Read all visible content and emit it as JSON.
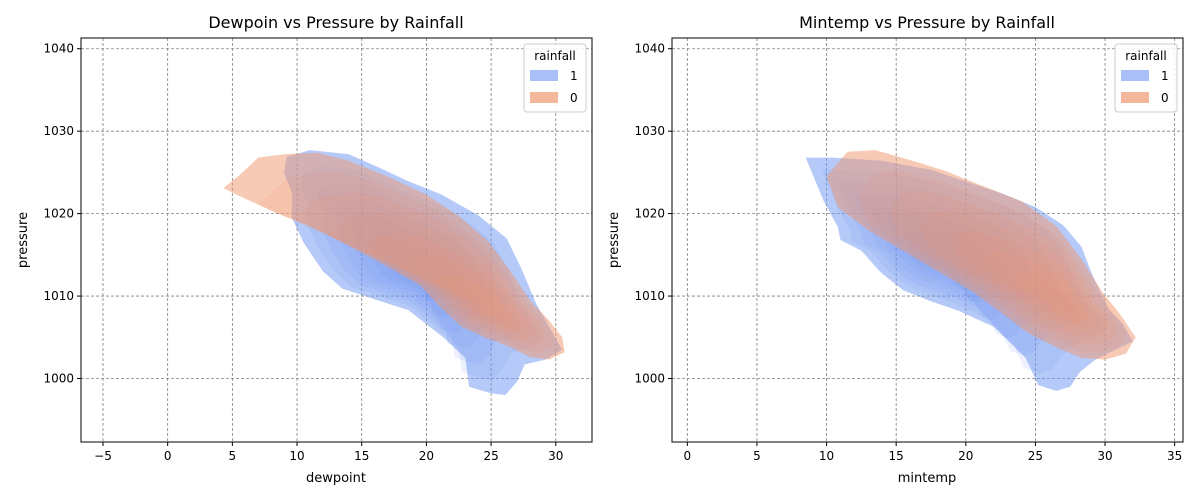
{
  "chart_data": [
    {
      "type": "kde_contour",
      "title": "Dewpoin vs Pressure by Rainfall",
      "xlabel": "dewpoint",
      "ylabel": "pressure",
      "xlim": [
        -6.7,
        32.8
      ],
      "ylim": [
        992.3,
        1041.3
      ],
      "xticks": [
        -5,
        0,
        5,
        10,
        15,
        20,
        25,
        30
      ],
      "yticks": [
        1000,
        1010,
        1020,
        1030,
        1040
      ],
      "grid": true,
      "legend": {
        "title": "rainfall",
        "placement": "top-right",
        "entries": [
          "1",
          "0"
        ]
      },
      "series": [
        {
          "name": "1",
          "color": "#6c96f2",
          "outline": [
            [
              9,
              1025
            ],
            [
              9.2,
              1026.9
            ],
            [
              11,
              1027.7
            ],
            [
              14,
              1027.2
            ],
            [
              16.3,
              1025.6
            ],
            [
              18.5,
              1024
            ],
            [
              21.2,
              1022.3
            ],
            [
              24,
              1019.8
            ],
            [
              26.2,
              1017
            ],
            [
              27.3,
              1013.5
            ],
            [
              28.5,
              1009
            ],
            [
              29.6,
              1006
            ],
            [
              30.5,
              1003.5
            ],
            [
              29.2,
              1002.3
            ],
            [
              27.6,
              1001.7
            ],
            [
              27,
              999.6
            ],
            [
              26.1,
              998
            ],
            [
              25,
              998.2
            ],
            [
              23.3,
              999
            ],
            [
              23,
              1002.5
            ],
            [
              21.3,
              1005
            ],
            [
              18.6,
              1008.3
            ],
            [
              16.4,
              1009.4
            ],
            [
              13.5,
              1010.9
            ],
            [
              12,
              1013
            ],
            [
              10.5,
              1016.5
            ],
            [
              9.6,
              1019.5
            ],
            [
              9.6,
              1022.5
            ]
          ],
          "center": [
            19,
            1012.5
          ]
        },
        {
          "name": "0",
          "color": "#f0956e",
          "outline": [
            [
              4.3,
              1023.1
            ],
            [
              5.5,
              1024.6
            ],
            [
              7,
              1026.8
            ],
            [
              9,
              1027.2
            ],
            [
              11.5,
              1027.4
            ],
            [
              14,
              1026.4
            ],
            [
              17,
              1024.5
            ],
            [
              20,
              1022.3
            ],
            [
              22.5,
              1019.7
            ],
            [
              24.8,
              1016.6
            ],
            [
              26.5,
              1013
            ],
            [
              28,
              1009.5
            ],
            [
              29.5,
              1007
            ],
            [
              30.5,
              1005
            ],
            [
              30.7,
              1003.2
            ],
            [
              29.5,
              1002.3
            ],
            [
              28,
              1002.6
            ],
            [
              26.5,
              1003.8
            ],
            [
              24.5,
              1005
            ],
            [
              22.7,
              1006.3
            ],
            [
              21,
              1008.8
            ],
            [
              19.5,
              1011.3
            ],
            [
              16.5,
              1014
            ],
            [
              13.5,
              1016.5
            ],
            [
              11,
              1018.5
            ],
            [
              8.5,
              1020
            ],
            [
              6,
              1021.8
            ]
          ],
          "center": [
            25,
            1008.5
          ]
        }
      ]
    },
    {
      "type": "kde_contour",
      "title": "Mintemp vs Pressure by Rainfall",
      "xlabel": "mintemp",
      "ylabel": "pressure",
      "xlim": [
        -1.1,
        35.6
      ],
      "ylim": [
        992.3,
        1041.3
      ],
      "xticks": [
        0,
        5,
        10,
        15,
        20,
        25,
        30,
        35
      ],
      "yticks": [
        1000,
        1010,
        1020,
        1030,
        1040
      ],
      "grid": true,
      "legend": {
        "title": "rainfall",
        "placement": "top-right",
        "entries": [
          "1",
          "0"
        ]
      },
      "series": [
        {
          "name": "1",
          "color": "#6c96f2",
          "outline": [
            [
              8.5,
              1026.8
            ],
            [
              10.5,
              1026.8
            ],
            [
              14,
              1026.4
            ],
            [
              17.5,
              1025.3
            ],
            [
              20,
              1023.9
            ],
            [
              22.5,
              1022.5
            ],
            [
              25,
              1020.8
            ],
            [
              27,
              1018.6
            ],
            [
              28.3,
              1016
            ],
            [
              29.1,
              1012.5
            ],
            [
              30.3,
              1008.3
            ],
            [
              31.2,
              1006.8
            ],
            [
              32,
              1004.5
            ],
            [
              30.5,
              1003.3
            ],
            [
              29.3,
              1002.3
            ],
            [
              28.2,
              1000.8
            ],
            [
              27.5,
              999
            ],
            [
              26.5,
              998.5
            ],
            [
              25.2,
              999.2
            ],
            [
              24.3,
              1002.5
            ],
            [
              22,
              1006.3
            ],
            [
              19.5,
              1008.2
            ],
            [
              17.3,
              1009.5
            ],
            [
              15.5,
              1010.7
            ],
            [
              13.8,
              1013
            ],
            [
              12.5,
              1015.5
            ],
            [
              11,
              1016.8
            ],
            [
              10.8,
              1018.4
            ],
            [
              9.8,
              1021.5
            ]
          ],
          "center": [
            17.5,
            1015
          ]
        },
        {
          "name": "0",
          "color": "#f0956e",
          "outline": [
            [
              10,
              1024.5
            ],
            [
              11.5,
              1027.5
            ],
            [
              13.5,
              1027.7
            ],
            [
              16,
              1026.5
            ],
            [
              18.5,
              1025.2
            ],
            [
              21,
              1023.5
            ],
            [
              24,
              1021.5
            ],
            [
              26.5,
              1018.5
            ],
            [
              28.3,
              1014.5
            ],
            [
              29.8,
              1010.5
            ],
            [
              31,
              1008
            ],
            [
              32.2,
              1005
            ],
            [
              31.5,
              1003
            ],
            [
              30,
              1002.3
            ],
            [
              28.3,
              1002.5
            ],
            [
              26.5,
              1003.8
            ],
            [
              24.5,
              1005.5
            ],
            [
              22.7,
              1007.8
            ],
            [
              20.5,
              1010.5
            ],
            [
              18,
              1013
            ],
            [
              15.5,
              1015.5
            ],
            [
              13,
              1018
            ],
            [
              10.8,
              1020.8
            ]
          ],
          "center": [
            27.2,
            1009
          ]
        }
      ]
    }
  ]
}
